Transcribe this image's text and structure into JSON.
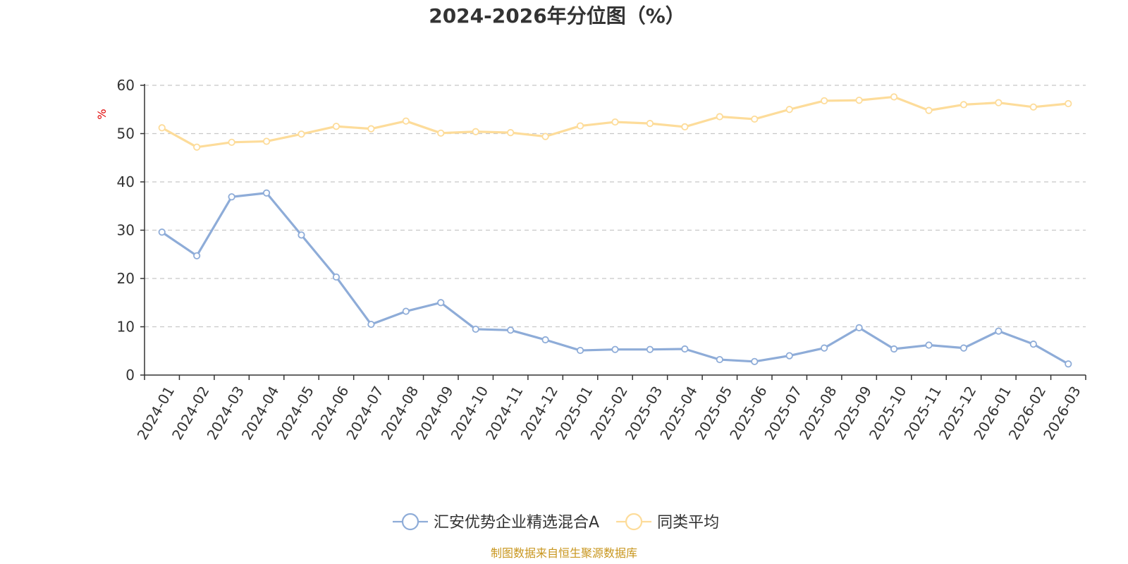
{
  "chart_data": {
    "type": "line",
    "title": "2024-2026年分位图（%）",
    "ylabel": "%",
    "ylim": [
      0,
      60
    ],
    "yticks": [
      0,
      10,
      20,
      30,
      40,
      50,
      60
    ],
    "grid": true,
    "legend_position": "bottom-center",
    "categories": [
      "2024-01",
      "2024-02",
      "2024-03",
      "2024-04",
      "2024-05",
      "2024-06",
      "2024-07",
      "2024-08",
      "2024-09",
      "2024-10",
      "2024-11",
      "2024-12",
      "2025-01",
      "2025-02",
      "2025-03",
      "2025-04",
      "2025-05",
      "2025-06",
      "2025-07",
      "2025-08",
      "2025-09",
      "2025-10",
      "2025-11",
      "2025-12",
      "2026-01",
      "2026-02",
      "2026-03"
    ],
    "series": [
      {
        "name": "汇安优势企业精选混合A",
        "color": "#8eacd8",
        "values": [
          29.6,
          24.7,
          36.9,
          37.7,
          29.0,
          20.3,
          10.5,
          13.2,
          15.0,
          9.5,
          9.3,
          7.3,
          5.1,
          5.3,
          5.3,
          5.4,
          3.2,
          2.8,
          4.0,
          5.6,
          9.8,
          5.4,
          6.2,
          5.6,
          9.1,
          6.4,
          2.3
        ]
      },
      {
        "name": "同类平均",
        "color": "#fddc9a",
        "values": [
          51.2,
          47.2,
          48.2,
          48.4,
          49.9,
          51.5,
          51.0,
          52.6,
          50.1,
          50.4,
          50.2,
          49.4,
          51.6,
          52.4,
          52.1,
          51.4,
          53.5,
          53.0,
          55.0,
          56.8,
          56.9,
          57.6,
          54.8,
          56.0,
          56.4,
          55.5,
          56.2
        ]
      }
    ]
  },
  "source": {
    "text": "制图数据来自恒生聚源数据库",
    "color": "#c8961e"
  }
}
